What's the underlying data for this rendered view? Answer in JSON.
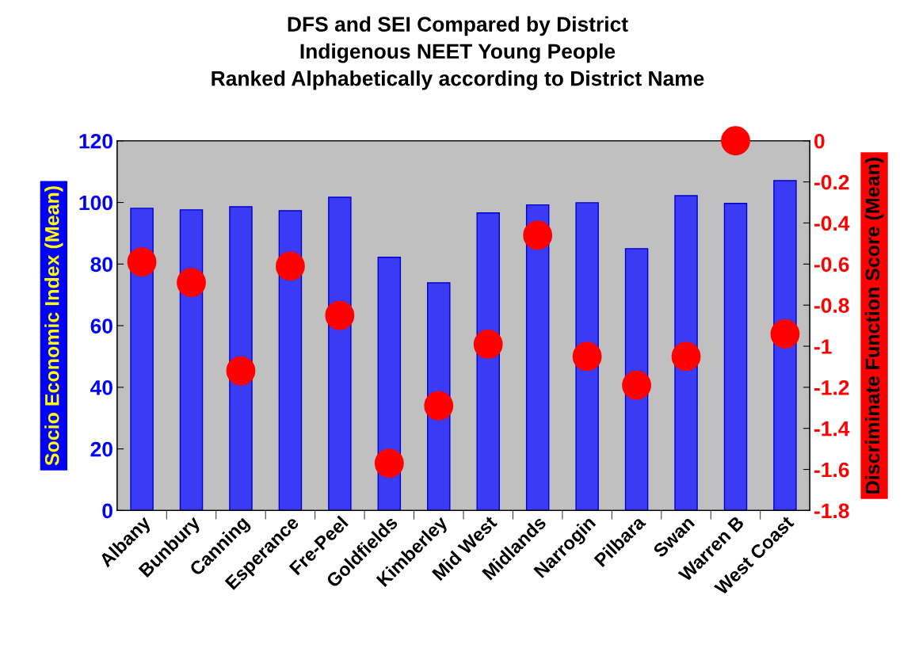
{
  "chart_data": {
    "type": "bar",
    "title": "DFS and SEI Compared by District\nIndigenous NEET Young People\nRanked Alphabetically according to District Name",
    "ylabel": "Socio Economic Index (Mean)",
    "y2label": "Discriminate Function Score (Mean)",
    "categories": [
      "Albany",
      "Bunbury",
      "Canning",
      "Esperance",
      "Fre-Peel",
      "Goldfields",
      "Kimberley",
      "Mid West",
      "Midlands",
      "Narrogin",
      "Pilbara",
      "Swan",
      "Warren B",
      "West Coast"
    ],
    "series": [
      {
        "color": "#3b3bf5",
        "values": [
          98.1,
          97.6,
          98.6,
          97.3,
          101.7,
          82.2,
          73.9,
          96.6,
          99.2,
          99.9,
          85.0,
          102.2,
          99.7,
          107.1
        ]
      },
      {
        "type": "scatter",
        "axis": "y2",
        "color": "#ff0000",
        "marker": "circle",
        "values": [
          -0.59,
          -0.69,
          -1.12,
          -0.61,
          -0.85,
          -1.57,
          -1.29,
          -0.99,
          -0.46,
          -1.05,
          -1.19,
          -1.05,
          0.0,
          -0.94
        ]
      }
    ],
    "ylim": [
      0,
      120
    ],
    "yticks": [
      0,
      20,
      40,
      60,
      80,
      100,
      120
    ],
    "y2lim": [
      -1.8,
      0
    ],
    "y2ticks": [
      -1.8,
      -1.6,
      -1.4,
      -1.2,
      -1,
      -0.8,
      -0.6,
      -0.4,
      -0.2,
      0
    ],
    "grid": false,
    "legend": false
  }
}
